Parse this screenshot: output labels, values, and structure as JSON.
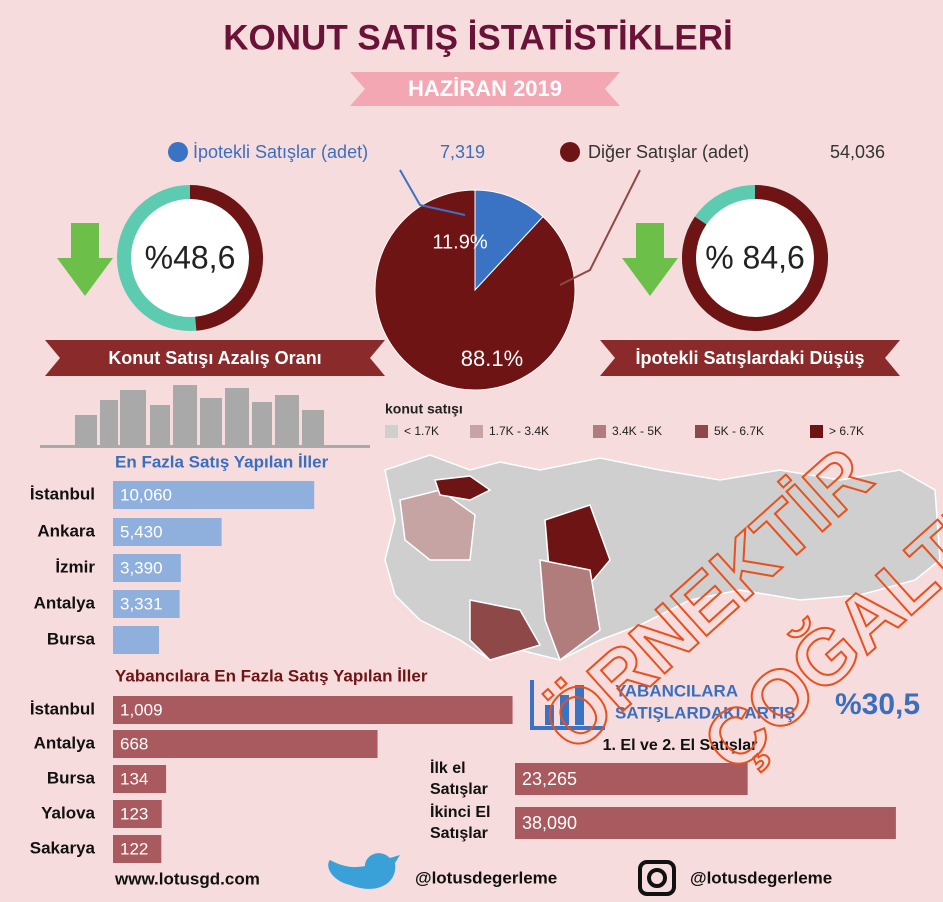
{
  "header": {
    "title": "KONUT SATIŞ İSTATİSTİKLERİ",
    "subtitle": "HAZİRAN 2019"
  },
  "pie": {
    "slices": [
      {
        "name": "İpotekli Satışlar (adet)",
        "count": 7319,
        "count_label": "7,319",
        "value": 11.9,
        "label": "11.9%",
        "color": "#3a73c4"
      },
      {
        "name": "Diğer Satışlar (adet)",
        "count": 54036,
        "count_label": "54,036",
        "value": 88.1,
        "label": "88.1%",
        "color": "#6e1414"
      }
    ]
  },
  "gauges": [
    {
      "value": 48.6,
      "label": "%48,6",
      "caption": "Konut Satışı Azalış Oranı"
    },
    {
      "value": 84.6,
      "label": "% 84,6",
      "caption": "İpotekli Satışlardaki Düşüş"
    }
  ],
  "map": {
    "title": "konut satışı",
    "legend": [
      {
        "name": "< 1.7K",
        "color": "#cfcfcf"
      },
      {
        "name": "1.7K - 3.4K",
        "color": "#c6a4a4"
      },
      {
        "name": "3.4K - 5K",
        "color": "#b07c7c"
      },
      {
        "name": "5K - 6.7K",
        "color": "#8e4848"
      },
      {
        "name": "> 6.7K",
        "color": "#6e1414"
      }
    ]
  },
  "top_cities": {
    "title": "En Fazla Satış Yapılan İller",
    "color": "#8fb0dd",
    "rows": [
      {
        "name": "İstanbul",
        "value": 10060,
        "label": "10,060"
      },
      {
        "name": "Ankara",
        "value": 5430,
        "label": "5,430"
      },
      {
        "name": "İzmir",
        "value": 3390,
        "label": "3,390"
      },
      {
        "name": "Antalya",
        "value": 3331,
        "label": "3,331"
      },
      {
        "name": "Bursa",
        "value": 2300
      }
    ]
  },
  "foreign_cities": {
    "title": "Yabancılara En Fazla Satış Yapılan İller",
    "color": "#a85a5e",
    "rows": [
      {
        "name": "İstanbul",
        "value": 1009,
        "label": "1,009"
      },
      {
        "name": "Antalya",
        "value": 668,
        "label": "668"
      },
      {
        "name": "Bursa",
        "value": 134,
        "label": "134"
      },
      {
        "name": "Yalova",
        "value": 123,
        "label": "123"
      },
      {
        "name": "Sakarya",
        "value": 122,
        "label": "122"
      }
    ]
  },
  "foreign_increase": {
    "lines": [
      "YABANCILARA",
      "SATIŞLARDAKI ARTIŞ"
    ],
    "value": 30.5,
    "label": "%30,5"
  },
  "hand_sales": {
    "title": "1. El ve 2. El Satışlar",
    "color": "#a85a5e",
    "rows": [
      {
        "lines": [
          "İlk el",
          "Satışlar"
        ],
        "value": 23265,
        "label": "23,265"
      },
      {
        "lines": [
          "İkinci El",
          "Satışlar"
        ],
        "value": 38090,
        "label": "38,090"
      }
    ]
  },
  "footer": {
    "website": "www.lotusgd.com",
    "twitter": "@lotusdegerleme",
    "instagram": "@lotusdegerleme"
  },
  "watermark": [
    "ÖRNEKTİR",
    "ÇOĞALTILAMAZ"
  ]
}
